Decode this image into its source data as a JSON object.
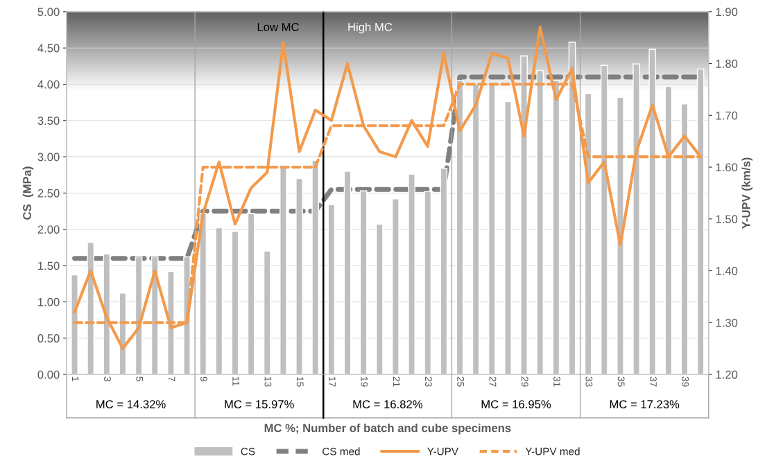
{
  "chart_data": {
    "type": "bar",
    "xlabel": "MC %; Number of batch and cube specimens",
    "ylabel": "CS  (MPa)",
    "y2label": "Y-UPV (km/s)",
    "x": [
      1,
      2,
      3,
      4,
      5,
      6,
      7,
      8,
      9,
      10,
      11,
      12,
      13,
      14,
      15,
      16,
      17,
      18,
      19,
      20,
      21,
      22,
      23,
      24,
      25,
      26,
      27,
      28,
      29,
      30,
      31,
      32,
      33,
      34,
      35,
      36,
      37,
      38,
      39,
      40
    ],
    "xlim": [
      0.5,
      40.5
    ],
    "xticks": [
      1,
      3,
      5,
      7,
      9,
      11,
      13,
      15,
      17,
      19,
      21,
      23,
      25,
      27,
      29,
      31,
      33,
      35,
      37,
      39
    ],
    "ylim": [
      0,
      5
    ],
    "yticks": [
      {
        "value": 0,
        "label": "0.00"
      },
      {
        "value": 0.5,
        "label": "0.50"
      },
      {
        "value": 1,
        "label": "1.00"
      },
      {
        "value": 1.5,
        "label": "1.50"
      },
      {
        "value": 2,
        "label": "2.00"
      },
      {
        "value": 2.5,
        "label": "2.50"
      },
      {
        "value": 3,
        "label": "3.00"
      },
      {
        "value": 3.5,
        "label": "3.50"
      },
      {
        "value": 4,
        "label": "4.00"
      },
      {
        "value": 4.5,
        "label": "4.50"
      },
      {
        "value": 5,
        "label": "5.00"
      }
    ],
    "y2lim": [
      1.2,
      1.9
    ],
    "y2ticks": [
      {
        "value": 1.2,
        "label": "1.20"
      },
      {
        "value": 1.3,
        "label": "1.30"
      },
      {
        "value": 1.4,
        "label": "1.40"
      },
      {
        "value": 1.5,
        "label": "1.50"
      },
      {
        "value": 1.6,
        "label": "1.60"
      },
      {
        "value": 1.7,
        "label": "1.70"
      },
      {
        "value": 1.8,
        "label": "1.80"
      },
      {
        "value": 1.9,
        "label": "1.90"
      }
    ],
    "series": [
      {
        "name": "CS",
        "color": "#bfbfbf",
        "values": [
          1.37,
          1.82,
          1.66,
          1.12,
          1.62,
          1.62,
          1.42,
          1.62,
          2.22,
          2.02,
          1.97,
          2.22,
          1.7,
          2.86,
          2.7,
          2.95,
          2.34,
          2.8,
          2.53,
          2.07,
          2.42,
          2.76,
          2.52,
          2.84,
          4.05,
          4.0,
          4.0,
          3.76,
          4.39,
          4.19,
          4.05,
          4.58,
          3.87,
          4.26,
          3.82,
          4.28,
          4.48,
          3.97,
          3.73,
          4.21
        ]
      },
      {
        "name": "CS med",
        "type": "line",
        "line_style": "dashed",
        "color": "#808080",
        "values": [
          1.6,
          1.6,
          1.6,
          1.6,
          1.6,
          1.6,
          1.6,
          1.6,
          2.25,
          2.25,
          2.25,
          2.25,
          2.25,
          2.25,
          2.25,
          2.25,
          2.55,
          2.55,
          2.55,
          2.55,
          2.55,
          2.55,
          2.55,
          2.55,
          4.1,
          4.1,
          4.1,
          4.1,
          4.1,
          4.1,
          4.1,
          4.1,
          4.1,
          4.1,
          4.1,
          4.1,
          4.1,
          4.1,
          4.1,
          4.1
        ]
      },
      {
        "name": "Y-UPV",
        "type": "line",
        "line_style": "solid",
        "axis": "y2",
        "color": "#f39a4c",
        "values": [
          1.32,
          1.4,
          1.31,
          1.25,
          1.29,
          1.4,
          1.29,
          1.3,
          1.51,
          1.61,
          1.49,
          1.56,
          1.59,
          1.84,
          1.63,
          1.71,
          1.69,
          1.8,
          1.68,
          1.63,
          1.62,
          1.69,
          1.64,
          1.82,
          1.67,
          1.72,
          1.82,
          1.81,
          1.66,
          1.87,
          1.73,
          1.79,
          1.57,
          1.61,
          1.45,
          1.63,
          1.72,
          1.62,
          1.66,
          1.62
        ]
      },
      {
        "name": "Y-UPV med",
        "type": "line",
        "line_style": "dashed",
        "axis": "y2",
        "color": "#f39a4c",
        "values": [
          1.3,
          1.3,
          1.3,
          1.3,
          1.3,
          1.3,
          1.3,
          1.3,
          1.6,
          1.6,
          1.6,
          1.6,
          1.6,
          1.6,
          1.6,
          1.6,
          1.68,
          1.68,
          1.68,
          1.68,
          1.68,
          1.68,
          1.68,
          1.68,
          1.76,
          1.76,
          1.76,
          1.76,
          1.76,
          1.76,
          1.76,
          1.76,
          1.62,
          1.62,
          1.62,
          1.62,
          1.62,
          1.62,
          1.62,
          1.62
        ]
      }
    ],
    "ref_lines": [
      {
        "axis": "x",
        "value": 8.5,
        "color": "#a6a6a6"
      },
      {
        "axis": "x",
        "value": 16.5,
        "color": "#000000"
      },
      {
        "axis": "x",
        "value": 24.5,
        "color": "#a6a6a6"
      },
      {
        "axis": "x",
        "value": 32.5,
        "color": "#a6a6a6"
      }
    ],
    "annotations": [
      "Low MC",
      "High MC",
      "MC = 14.32%",
      "MC = 15.97%",
      "MC = 16.82%",
      "MC = 16.95%",
      "MC = 17.23%"
    ],
    "grid": "y",
    "legend": "bottom"
  }
}
